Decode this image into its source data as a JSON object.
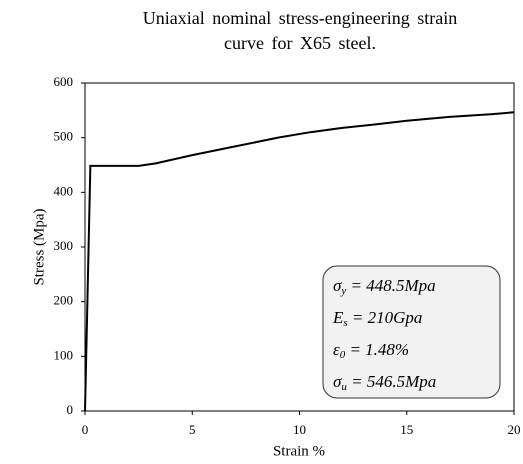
{
  "chart_data": {
    "type": "line",
    "title": "Uniaxial nominal stress-engineering strain curve for X65 steel.",
    "xlabel": "Strain %",
    "ylabel": "Stress (Mpa)",
    "x": [
      0,
      0.25,
      2.5,
      3.3,
      5,
      7,
      9,
      10.5,
      12,
      13.5,
      15,
      17,
      19,
      20
    ],
    "series": [
      {
        "color": "#000000",
        "values": [
          0,
          448.5,
          448.5,
          453,
          468,
          484,
          500,
          510,
          518,
          524,
          531,
          538,
          543,
          546.5
        ]
      }
    ],
    "xlim": [
      0,
      20
    ],
    "xticks": [
      0,
      5,
      10,
      15,
      20
    ],
    "ylim": [
      0,
      600
    ],
    "yticks": [
      0,
      100,
      200,
      300,
      400,
      500,
      600
    ],
    "grid": false,
    "annotations": [
      {
        "symbol": "σ",
        "sub": "y",
        "text": " = 448.5Mpa"
      },
      {
        "symbol": "E",
        "sub": "s",
        "text": " = 210Gpa"
      },
      {
        "symbol": "ε",
        "sub": "0",
        "text": " = 1.48%"
      },
      {
        "symbol": "σ",
        "sub": "u",
        "text": " = 546.5Mpa"
      }
    ]
  }
}
